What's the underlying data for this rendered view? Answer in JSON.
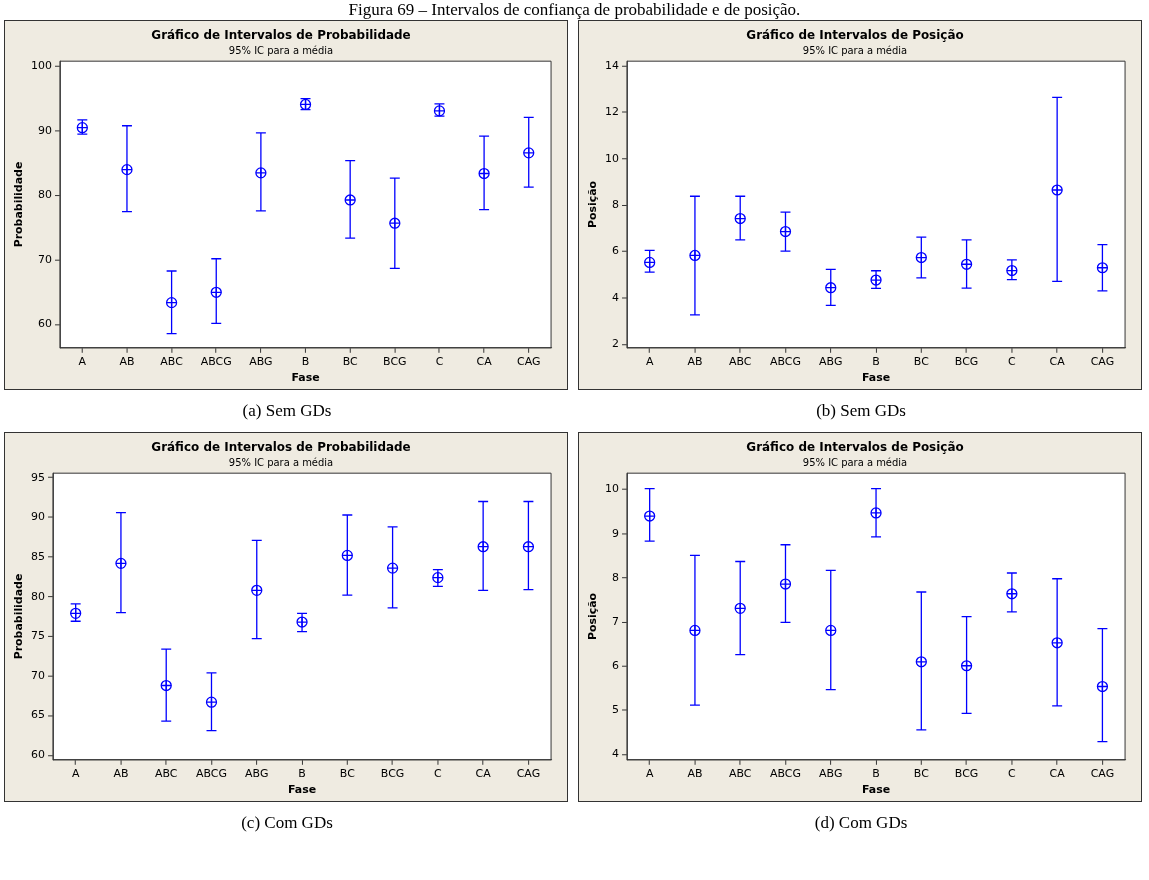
{
  "chart_data": [
    {
      "type": "scatter",
      "title": "Gráfico de Intervalos de Probabilidade",
      "subtitle": "95% IC para a média",
      "xlabel": "Fase",
      "ylabel": "Probabilidade",
      "categories": [
        "A",
        "AB",
        "ABC",
        "ABCG",
        "ABG",
        "B",
        "BC",
        "BCG",
        "C",
        "CA",
        "CAG"
      ],
      "series": [
        {
          "color": "#0000ff",
          "values": [
            90.5,
            84.0,
            63.4,
            65.0,
            83.5,
            94.1,
            79.3,
            75.7,
            93.1,
            83.4,
            86.6
          ],
          "errors": [
            [
              89.5,
              91.7
            ],
            [
              77.5,
              90.8
            ],
            [
              58.6,
              68.3
            ],
            [
              60.2,
              70.2
            ],
            [
              77.6,
              89.7
            ],
            [
              93.3,
              95.0
            ],
            [
              73.4,
              85.4
            ],
            [
              68.7,
              82.7
            ],
            [
              92.3,
              94.2
            ],
            [
              77.8,
              89.2
            ],
            [
              81.3,
              92.1
            ]
          ]
        }
      ],
      "ylim": [
        56.4,
        100.8
      ],
      "yticks": [
        60,
        70,
        80,
        90,
        100
      ],
      "marker": "circle",
      "annotations": [
        "Figura 69 – Intervalos de confiança de probabilidade e de posição.",
        "(a) Sem GDs"
      ]
    },
    {
      "type": "scatter",
      "title": "Gráfico de Intervalos de Posição",
      "subtitle": "95% IC para a média",
      "xlabel": "Fase",
      "ylabel": "Posição",
      "categories": [
        "A",
        "AB",
        "ABC",
        "ABCG",
        "ABG",
        "B",
        "BC",
        "BCG",
        "C",
        "CA",
        "CAG"
      ],
      "series": [
        {
          "color": "#0000ff",
          "values": [
            5.53,
            5.83,
            7.42,
            6.86,
            4.44,
            4.77,
            5.74,
            5.45,
            5.18,
            8.65,
            5.3
          ],
          "errors": [
            [
              5.11,
              6.05
            ],
            [
              3.27,
              8.38
            ],
            [
              6.5,
              8.38
            ],
            [
              6.02,
              7.7
            ],
            [
              3.68,
              5.23
            ],
            [
              4.41,
              5.17
            ],
            [
              4.86,
              6.62
            ],
            [
              4.42,
              6.5
            ],
            [
              4.79,
              5.64
            ],
            [
              4.71,
              12.64
            ],
            [
              4.3,
              6.3
            ]
          ]
        }
      ],
      "ylim": [
        1.85,
        14.2
      ],
      "yticks": [
        2,
        4,
        6,
        8,
        10,
        12,
        14
      ],
      "marker": "circle",
      "annotations": [
        "(b) Sem GDs"
      ]
    },
    {
      "type": "scatter",
      "title": "Gráfico de Intervalos de Probabilidade",
      "subtitle": "95% IC para a média",
      "xlabel": "Fase",
      "ylabel": "Probabilidade",
      "categories": [
        "A",
        "AB",
        "ABC",
        "ABCG",
        "ABG",
        "B",
        "BC",
        "BCG",
        "C",
        "CA",
        "CAG"
      ],
      "series": [
        {
          "color": "#0000ff",
          "values": [
            77.9,
            84.2,
            68.8,
            66.7,
            80.8,
            76.8,
            85.2,
            83.6,
            82.4,
            86.3,
            86.3
          ],
          "errors": [
            [
              76.9,
              79.1
            ],
            [
              78.0,
              90.6
            ],
            [
              64.3,
              73.4
            ],
            [
              63.1,
              70.4
            ],
            [
              74.7,
              87.1
            ],
            [
              75.6,
              77.9
            ],
            [
              80.2,
              90.3
            ],
            [
              78.6,
              88.8
            ],
            [
              81.3,
              83.4
            ],
            [
              80.8,
              92.0
            ],
            [
              80.9,
              92.0
            ]
          ]
        }
      ],
      "ylim": [
        59.43,
        95.57
      ],
      "yticks": [
        60,
        65,
        70,
        75,
        80,
        85,
        90,
        95
      ],
      "marker": "circle",
      "annotations": [
        "(c) Com GDs"
      ]
    },
    {
      "type": "scatter",
      "title": "Gráfico de Intervalos de Posição",
      "subtitle": "95% IC para a média",
      "xlabel": "Fase",
      "ylabel": "Posição",
      "categories": [
        "A",
        "AB",
        "ABC",
        "ABCG",
        "ABG",
        "B",
        "BC",
        "BCG",
        "C",
        "CA",
        "CAG"
      ],
      "series": [
        {
          "color": "#0000ff",
          "values": [
            9.4,
            6.81,
            7.31,
            7.86,
            6.81,
            9.47,
            6.1,
            6.01,
            7.64,
            6.53,
            5.54
          ],
          "errors": [
            [
              8.83,
              10.02
            ],
            [
              5.12,
              8.51
            ],
            [
              6.26,
              8.37
            ],
            [
              6.99,
              8.75
            ],
            [
              5.47,
              8.17
            ],
            [
              8.93,
              10.02
            ],
            [
              4.56,
              7.68
            ],
            [
              4.93,
              7.12
            ],
            [
              7.23,
              8.11
            ],
            [
              5.1,
              7.98
            ],
            [
              4.29,
              6.85
            ]
          ]
        }
      ],
      "ylim": [
        3.88,
        10.37
      ],
      "yticks": [
        4,
        5,
        6,
        7,
        8,
        9,
        10
      ],
      "marker": "circle",
      "annotations": [
        "(d) Com GDs"
      ]
    }
  ]
}
